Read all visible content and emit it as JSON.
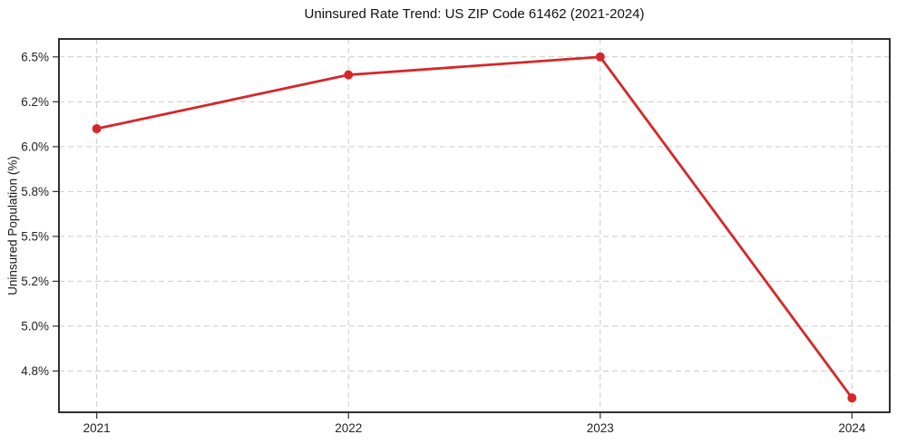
{
  "chart_data": {
    "type": "line",
    "title": "Uninsured Rate Trend: US ZIP Code 61462 (2021-2024)",
    "xlabel": "",
    "ylabel": "Uninsured Population (%)",
    "x": [
      2021,
      2022,
      2023,
      2024
    ],
    "values": [
      6.1,
      6.4,
      6.5,
      4.6
    ],
    "x_tick_labels": [
      "2021",
      "2022",
      "2023",
      "2024"
    ],
    "y_ticks": [
      4.75,
      5.0,
      5.25,
      5.5,
      5.75,
      6.0,
      6.25,
      6.5
    ],
    "y_tick_labels": [
      "4.8%",
      "5.0%",
      "5.2%",
      "5.5%",
      "5.8%",
      "6.0%",
      "6.2%",
      "6.5%"
    ],
    "xlim": [
      2020.85,
      2024.15
    ],
    "ylim": [
      4.52,
      6.6
    ],
    "grid": true,
    "legend_position": "none",
    "line_color": "#d62728",
    "grid_color": "#cccccc",
    "spine_color": "#1a1a1a",
    "marker_radius": 5,
    "line_width": 2.8
  }
}
